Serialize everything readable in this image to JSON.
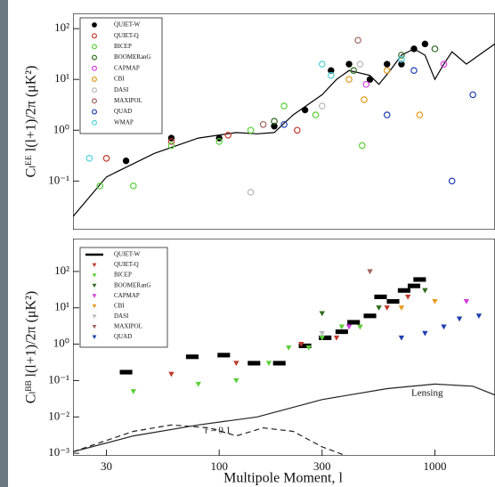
{
  "chart_data": [
    {
      "type": "scatter",
      "xscale": "log",
      "yscale": "log",
      "ylabel": "Cₗᴱᴱ l(l+1)/2π (μK²)",
      "xlim": [
        21,
        1900
      ],
      "ylim": [
        0.011,
        200
      ],
      "yticks": [
        {
          "value": 100,
          "label": "10²"
        },
        {
          "value": 10,
          "label": "10¹"
        },
        {
          "value": 1,
          "label": "10⁰"
        },
        {
          "value": 0.1,
          "label": "10⁻¹"
        }
      ],
      "series": [
        {
          "name": "QUIET-W",
          "color": "#000000",
          "marker": "filled-circle",
          "x": [
            37,
            60,
            100,
            180,
            250,
            330,
            400,
            500,
            600,
            700,
            800,
            900
          ],
          "values": [
            0.25,
            0.7,
            0.7,
            1.2,
            2.5,
            15,
            20,
            10,
            20,
            20,
            40,
            50
          ]
        },
        {
          "name": "QUIET-Q",
          "color": "#c0392b",
          "marker": "open-circle",
          "x": [
            30,
            60,
            110,
            230
          ],
          "values": [
            0.28,
            0.6,
            0.8,
            1
          ]
        },
        {
          "name": "BICEP",
          "color": "#5ccf3a",
          "marker": "open-circle",
          "x": [
            28,
            40,
            60,
            100,
            140,
            200,
            280,
            460
          ],
          "values": [
            0.08,
            0.08,
            0.5,
            0.6,
            1,
            3,
            2,
            0.5
          ]
        },
        {
          "name": "BOOMERanG",
          "color": "#2e6b1e",
          "marker": "open-circle",
          "x": [
            180,
            420,
            700,
            1000
          ],
          "values": [
            1.5,
            15,
            30,
            40
          ]
        },
        {
          "name": "CAPMAP",
          "color": "#d23be0",
          "marker": "open-circle",
          "x": [
            480,
            1100
          ],
          "values": [
            8,
            20
          ]
        },
        {
          "name": "CBI",
          "color": "#e39a1c",
          "marker": "open-circle",
          "x": [
            400,
            470,
            600,
            850
          ],
          "values": [
            10,
            4,
            15,
            2
          ]
        },
        {
          "name": "DASI",
          "color": "#b8b8b8",
          "marker": "open-circle",
          "x": [
            140,
            300,
            450
          ],
          "values": [
            0.06,
            3,
            20
          ]
        },
        {
          "name": "MAXIPOL",
          "color": "#a0625a",
          "marker": "open-circle",
          "x": [
            160,
            440
          ],
          "values": [
            1.3,
            59
          ]
        },
        {
          "name": "QUAD",
          "color": "#1f3fae",
          "marker": "open-circle",
          "x": [
            200,
            600,
            800,
            1200,
            1500
          ],
          "values": [
            1.3,
            2,
            15,
            0.1,
            5
          ]
        },
        {
          "name": "WMAP",
          "color": "#4fd0d8",
          "marker": "open-circle",
          "x": [
            25,
            300,
            330,
            700
          ],
          "values": [
            0.28,
            20,
            12,
            25
          ]
        }
      ],
      "curves": [
        {
          "color": "#000000",
          "dash": "solid",
          "x": [
            21,
            30,
            50,
            80,
            120,
            150,
            180,
            220,
            300,
            350,
            400,
            500,
            550,
            620,
            700,
            800,
            900,
            1000,
            1100,
            1200,
            1400,
            1600,
            1900
          ],
          "values": [
            0.02,
            0.12,
            0.35,
            0.7,
            0.9,
            0.85,
            0.9,
            2,
            5,
            10,
            15,
            12,
            8,
            15,
            30,
            40,
            30,
            10,
            20,
            35,
            20,
            30,
            50
          ]
        }
      ]
    },
    {
      "type": "scatter",
      "xscale": "log",
      "yscale": "log",
      "ylabel": "Cₗᴮᴮ l(l+1)/2π (μK²)",
      "xlabel": "Multipole Moment, l",
      "xlim": [
        21,
        1900
      ],
      "ylim": [
        0.00085,
        800
      ],
      "xticks": [
        30,
        100,
        300,
        1000
      ],
      "yticks": [
        {
          "value": 100,
          "label": "10²"
        },
        {
          "value": 10,
          "label": "10¹"
        },
        {
          "value": 1,
          "label": "10⁰"
        },
        {
          "value": 0.1,
          "label": "10⁻¹"
        },
        {
          "value": 0.01,
          "label": "10⁻²"
        },
        {
          "value": 0.001,
          "label": "10⁻³"
        }
      ],
      "series": [
        {
          "name": "QUIET-W",
          "color": "#000000",
          "marker": "box",
          "x": [
            37,
            75,
            105,
            145,
            190,
            250,
            310,
            370,
            420,
            500,
            560,
            640,
            720,
            800,
            850
          ],
          "values": [
            0.17,
            0.45,
            0.5,
            0.3,
            0.3,
            0.9,
            1.5,
            2.2,
            4,
            6,
            20,
            15,
            30,
            40,
            60
          ]
        },
        {
          "name": "QUIET-Q",
          "color": "#c0392b",
          "marker": "triangle",
          "x": [
            60,
            120,
            240,
            350,
            450,
            600,
            750
          ],
          "values": [
            0.15,
            0.3,
            1,
            1.5,
            3,
            10,
            20
          ]
        },
        {
          "name": "BICEP",
          "color": "#5ccf3a",
          "marker": "triangle",
          "x": [
            40,
            80,
            120,
            170,
            210,
            260,
            300,
            370,
            450
          ],
          "values": [
            0.05,
            0.08,
            0.1,
            0.3,
            0.8,
            0.8,
            1.5,
            3,
            3
          ]
        },
        {
          "name": "BOOMERanG",
          "color": "#2e6b1e",
          "marker": "triangle",
          "x": [
            300,
            550,
            900
          ],
          "values": [
            7,
            10,
            30
          ]
        },
        {
          "name": "CAPMAP",
          "color": "#d23be0",
          "marker": "triangle",
          "x": [
            400,
            1400
          ],
          "values": [
            3,
            15
          ]
        },
        {
          "name": "CBI",
          "color": "#e39a1c",
          "marker": "triangle",
          "x": [
            700,
            1000
          ],
          "values": [
            10,
            15
          ]
        },
        {
          "name": "DASI",
          "color": "#b8b8b8",
          "marker": "triangle",
          "x": [
            300
          ],
          "values": [
            2
          ]
        },
        {
          "name": "MAXIPOL",
          "color": "#a0625a",
          "marker": "triangle",
          "x": [
            500
          ],
          "values": [
            100
          ]
        },
        {
          "name": "QUAD",
          "color": "#1f3fae",
          "marker": "triangle",
          "x": [
            700,
            900,
            1100,
            1300,
            1600
          ],
          "values": [
            1.5,
            2,
            3,
            5,
            6
          ]
        }
      ],
      "curves": [
        {
          "name": "Lensing",
          "color": "#222222",
          "dash": "solid",
          "x": [
            21,
            40,
            80,
            150,
            300,
            600,
            1000,
            1500,
            1900
          ],
          "values": [
            0.0011,
            0.003,
            0.006,
            0.01,
            0.03,
            0.06,
            0.08,
            0.07,
            0.04
          ]
        },
        {
          "name": "r = 0.1",
          "color": "#222222",
          "dash": "dashed",
          "x": [
            21,
            40,
            60,
            90,
            120,
            160,
            220,
            300,
            400
          ],
          "values": [
            0.0011,
            0.004,
            0.006,
            0.005,
            0.003,
            0.005,
            0.004,
            0.0015,
            0.0008
          ]
        }
      ]
    }
  ]
}
